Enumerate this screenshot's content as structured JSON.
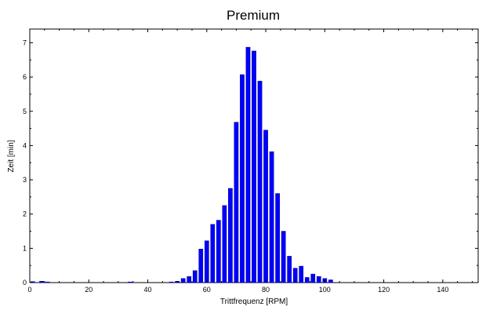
{
  "chart_data": {
    "type": "bar",
    "title": "Premium",
    "xlabel": "Trittfrequenz [RPM]",
    "ylabel": "Zeit [min]",
    "xlim": [
      0,
      152
    ],
    "ylim": [
      0,
      7.4
    ],
    "xticks": [
      0,
      20,
      40,
      60,
      80,
      100,
      120,
      140
    ],
    "yticks": [
      0,
      1,
      2,
      3,
      4,
      5,
      6,
      7
    ],
    "grid": false,
    "bar_color": "#0000ff",
    "x": [
      1,
      4,
      6,
      34,
      48,
      50,
      52,
      54,
      56,
      58,
      60,
      62,
      64,
      66,
      68,
      70,
      72,
      74,
      76,
      78,
      80,
      82,
      84,
      86,
      88,
      90,
      92,
      94,
      96,
      98,
      100,
      102
    ],
    "values": [
      0.03,
      0.04,
      0.02,
      0.02,
      0.02,
      0.04,
      0.12,
      0.18,
      0.35,
      0.98,
      1.22,
      1.7,
      1.82,
      2.25,
      2.75,
      4.68,
      6.07,
      6.87,
      6.76,
      5.88,
      4.45,
      3.82,
      2.6,
      1.5,
      0.77,
      0.42,
      0.48,
      0.15,
      0.25,
      0.18,
      0.12,
      0.08
    ]
  }
}
